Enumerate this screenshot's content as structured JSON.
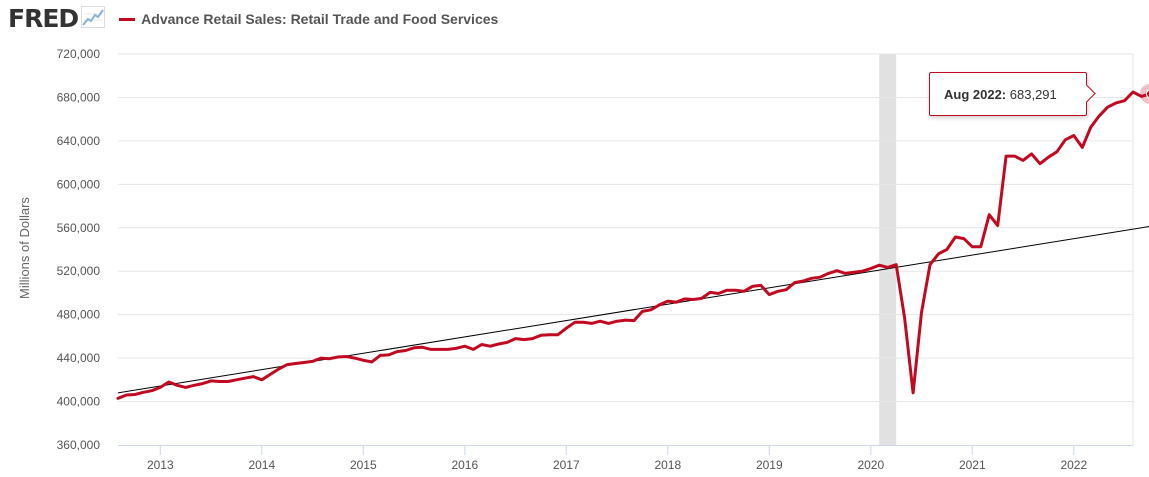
{
  "header": {
    "logo_text": "FRED",
    "logo_icon": "trend-line-icon",
    "series_label": "Advance Retail Sales: Retail Trade and Food Services"
  },
  "colors": {
    "series": "#c10a22",
    "trend": "#000000",
    "recession": "#e1e1e1",
    "grid": "#e6e6e6",
    "axis": "#ccd6eb",
    "text": "#555555"
  },
  "tooltip": {
    "label": "Aug 2022:",
    "value": "683,291"
  },
  "chart_data": {
    "type": "line",
    "title": "Advance Retail Sales: Retail Trade and Food Services",
    "ylabel": "Millions of Dollars",
    "xlabel": "",
    "ylim": [
      360000,
      720000
    ],
    "y_ticks": [
      "360,000",
      "400,000",
      "440,000",
      "480,000",
      "520,000",
      "560,000",
      "600,000",
      "640,000",
      "680,000",
      "720,000"
    ],
    "x_ticks": [
      "2013",
      "2014",
      "2015",
      "2016",
      "2017",
      "2018",
      "2019",
      "2020",
      "2021",
      "2022"
    ],
    "grid": true,
    "legend_position": "top-left",
    "recession_shading": {
      "start": "2020-02",
      "end": "2020-04"
    },
    "series": [
      {
        "name": "Advance Retail Sales: Retail Trade and Food Services",
        "x_start": "2012-08",
        "frequency": "monthly",
        "values": [
          403000,
          406000,
          406500,
          408500,
          410000,
          413000,
          418000,
          415000,
          413000,
          415000,
          416500,
          419000,
          418500,
          418500,
          420000,
          421500,
          423000,
          420000,
          425000,
          430000,
          434000,
          435000,
          436000,
          437000,
          440000,
          439500,
          441000,
          441500,
          440000,
          438000,
          436500,
          442500,
          443000,
          446000,
          447000,
          449500,
          450000,
          448000,
          448000,
          448000,
          449000,
          451000,
          448000,
          452500,
          451000,
          453000,
          454500,
          458000,
          457000,
          458000,
          461000,
          461500,
          461500,
          467500,
          473000,
          473000,
          472000,
          474000,
          472000,
          474000,
          475000,
          474500,
          483000,
          484500,
          489000,
          492500,
          491500,
          494500,
          494000,
          495000,
          500500,
          499500,
          502500,
          502500,
          501500,
          506000,
          507000,
          498500,
          501500,
          503000,
          509500,
          511000,
          513500,
          514500,
          518000,
          520500,
          518000,
          519000,
          520000,
          522500,
          525500,
          523500,
          526000,
          477000,
          408000,
          482000,
          526000,
          536000,
          540000,
          551500,
          550000,
          542500,
          542500,
          572000,
          562000,
          626000,
          626000,
          622000,
          628000,
          619000,
          625000,
          630000,
          641000,
          645000,
          634000,
          652500,
          663000,
          671000,
          675000,
          677000,
          685000,
          681000,
          683291
        ]
      },
      {
        "name": "Linear trend",
        "type": "trend",
        "points": [
          [
            "2012-08",
            408000
          ],
          [
            "2022-09",
            560000
          ]
        ]
      }
    ]
  }
}
